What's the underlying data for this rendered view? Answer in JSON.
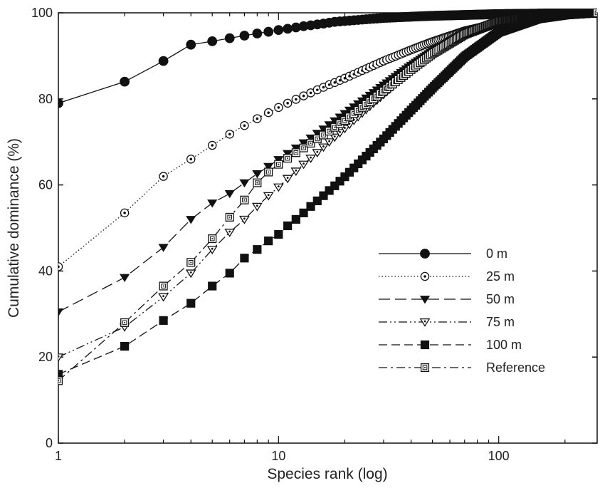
{
  "chart_data": {
    "type": "line",
    "title": "",
    "xlabel": "Species rank (log)",
    "ylabel": "Cumulative dominance (%)",
    "x_scale": "log",
    "xlim": [
      1,
      280
    ],
    "ylim": [
      0,
      100
    ],
    "x_ticks": [
      1,
      10,
      100
    ],
    "x_tick_labels": [
      "1",
      "10",
      "100"
    ],
    "y_ticks": [
      0,
      20,
      40,
      60,
      80,
      100
    ],
    "y_tick_labels": [
      "0",
      "20",
      "40",
      "60",
      "80",
      "100"
    ],
    "grid": false,
    "legend_position": "lower-right",
    "series": [
      {
        "name": "0 m",
        "marker": "filled-circle",
        "line": "solid",
        "x": [
          1,
          2,
          3,
          4,
          5,
          6,
          7,
          8,
          9,
          10,
          11,
          12,
          13,
          14,
          15,
          16,
          17,
          18,
          20,
          25,
          30,
          40,
          50,
          70,
          100,
          150,
          200,
          280
        ],
        "y": [
          79,
          84,
          88.8,
          92.6,
          93.4,
          94.1,
          94.7,
          95.2,
          95.6,
          96,
          96.3,
          96.6,
          96.9,
          97.1,
          97.3,
          97.5,
          97.7,
          97.9,
          98.1,
          98.5,
          98.8,
          99.1,
          99.3,
          99.5,
          99.7,
          99.8,
          99.9,
          100
        ]
      },
      {
        "name": "25 m",
        "marker": "ring-circle",
        "line": "dotted",
        "x": [
          1,
          2,
          3,
          4,
          5,
          6,
          7,
          8,
          9,
          10,
          11,
          12,
          13,
          14,
          15,
          16,
          17,
          18,
          20,
          25,
          30,
          40,
          50,
          70,
          100,
          150,
          200,
          280
        ],
        "y": [
          41,
          53.5,
          62,
          66,
          69.2,
          71.8,
          73.8,
          75.4,
          76.8,
          78,
          79,
          79.9,
          80.7,
          81.4,
          82.1,
          82.7,
          83.3,
          83.8,
          84.8,
          87,
          88.8,
          91.4,
          93.3,
          95.8,
          97.6,
          98.9,
          99.5,
          100
        ]
      },
      {
        "name": "50 m",
        "marker": "filled-triangle-down",
        "line": "long-dash",
        "x": [
          1,
          2,
          3,
          4,
          5,
          6,
          7,
          8,
          9,
          10,
          11,
          12,
          13,
          14,
          15,
          16,
          17,
          18,
          20,
          25,
          30,
          40,
          50,
          70,
          100,
          150,
          200,
          280
        ],
        "y": [
          30.5,
          38.5,
          45.5,
          52,
          55.8,
          58,
          60.5,
          62.6,
          64.3,
          65.9,
          67.3,
          68.6,
          69.8,
          70.9,
          72,
          73,
          74,
          74.9,
          76.6,
          80.2,
          83.2,
          87.8,
          91.1,
          95.3,
          98,
          99.3,
          99.7,
          100
        ]
      },
      {
        "name": "75 m",
        "marker": "open-triangle-down",
        "line": "dash-dot-dot",
        "x": [
          1,
          2,
          3,
          4,
          5,
          6,
          7,
          8,
          9,
          10,
          11,
          12,
          13,
          14,
          15,
          16,
          17,
          18,
          20,
          25,
          30,
          40,
          50,
          70,
          100,
          150,
          200,
          280
        ],
        "y": [
          20,
          27,
          34,
          39.5,
          45,
          49,
          52,
          55,
          57.5,
          59.5,
          61.5,
          63.2,
          64.8,
          66.2,
          67.5,
          68.8,
          70,
          71.1,
          73.1,
          77.5,
          81,
          86.6,
          90.4,
          95,
          98,
          99.3,
          99.7,
          100
        ]
      },
      {
        "name": "100 m",
        "marker": "filled-square",
        "line": "dashed",
        "x": [
          1,
          2,
          3,
          4,
          5,
          6,
          7,
          8,
          9,
          10,
          11,
          12,
          13,
          14,
          15,
          16,
          17,
          18,
          20,
          25,
          30,
          40,
          50,
          70,
          100,
          150,
          200,
          280
        ],
        "y": [
          16,
          22.5,
          28.5,
          32.5,
          36.5,
          39.5,
          43,
          45,
          47,
          48.5,
          50.5,
          52,
          53.5,
          55,
          56.3,
          57.5,
          58.7,
          59.8,
          61.9,
          66.7,
          70.7,
          77.4,
          82.5,
          89.8,
          95.5,
          98.6,
          99.5,
          100
        ]
      },
      {
        "name": "Reference",
        "marker": "square-dot",
        "line": "dash-dot",
        "x": [
          1,
          2,
          3,
          4,
          5,
          6,
          7,
          8,
          9,
          10,
          11,
          12,
          13,
          14,
          15,
          16,
          17,
          18,
          20,
          25,
          30,
          40,
          50,
          70,
          100,
          150,
          200,
          280
        ],
        "y": [
          14.5,
          28,
          36.5,
          42,
          47.5,
          52.5,
          56.5,
          60.5,
          63,
          64.8,
          66.2,
          67.5,
          68.6,
          69.7,
          70.7,
          71.6,
          72.5,
          73.4,
          75,
          78.7,
          81.8,
          86.8,
          90.5,
          95,
          98,
          99.3,
          99.7,
          100
        ]
      }
    ]
  }
}
